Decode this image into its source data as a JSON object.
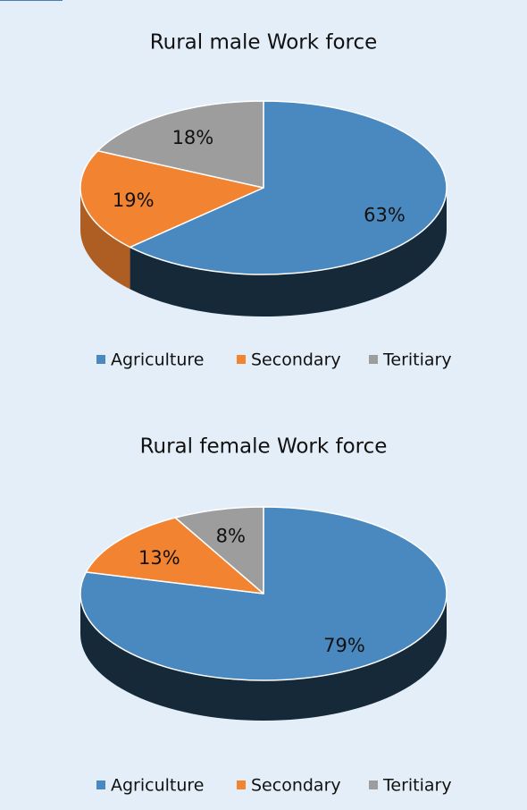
{
  "chart_data": [
    {
      "type": "pie",
      "title": "Rural male Work force",
      "categories": [
        "Agriculture",
        "Secondary",
        "Teritiary"
      ],
      "values": [
        63,
        19,
        18
      ],
      "value_labels": [
        "63%",
        "19%",
        "18%"
      ],
      "colors": [
        "#4a89bf",
        "#f28330",
        "#9d9d9d"
      ],
      "legend": "bottom"
    },
    {
      "type": "pie",
      "title": "Rural female Work force",
      "categories": [
        "Agriculture",
        "Secondary",
        "Teritiary"
      ],
      "values": [
        79,
        13,
        8
      ],
      "value_labels": [
        "79%",
        "13%",
        "8%"
      ],
      "colors": [
        "#4a89bf",
        "#f28330",
        "#9d9d9d"
      ],
      "legend": "bottom"
    }
  ]
}
